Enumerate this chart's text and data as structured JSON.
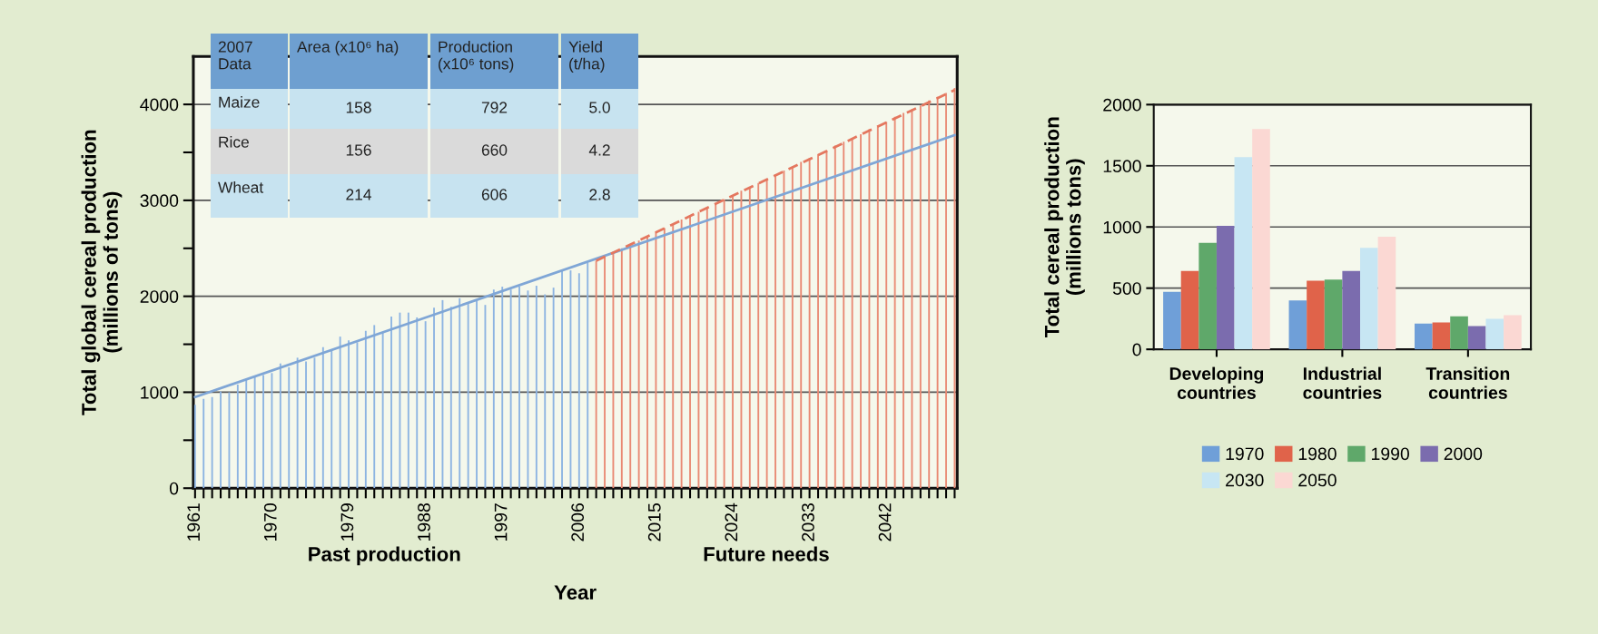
{
  "chart_data": [
    {
      "type": "bar",
      "stacked": true,
      "xlabel": "Year",
      "ylabel": "Total global cereal production\n(millions of tons)",
      "x": [
        1961,
        1962,
        1963,
        1964,
        1965,
        1966,
        1967,
        1968,
        1969,
        1970,
        1971,
        1972,
        1973,
        1974,
        1975,
        1976,
        1977,
        1978,
        1979,
        1980,
        1981,
        1982,
        1983,
        1984,
        1985,
        1986,
        1987,
        1988,
        1989,
        1990,
        1991,
        1992,
        1993,
        1994,
        1995,
        1996,
        1997,
        1998,
        1999,
        2000,
        2001,
        2002,
        2003,
        2004,
        2005,
        2006,
        2007,
        2008,
        2009,
        2010,
        2011,
        2012,
        2013,
        2014,
        2015,
        2016,
        2017,
        2018,
        2019,
        2020,
        2021,
        2022,
        2023,
        2024,
        2025,
        2026,
        2027,
        2028,
        2029,
        2030,
        2031,
        2032,
        2033,
        2034,
        2035,
        2036,
        2037,
        2038,
        2039,
        2040,
        2041,
        2042,
        2043,
        2044,
        2045,
        2046,
        2047,
        2048,
        2049,
        2050
      ],
      "series": [
        {
          "color": "#8db4e2",
          "values": [
            870,
            930,
            950,
            1010,
            1000,
            1080,
            1140,
            1170,
            1180,
            1200,
            1300,
            1260,
            1360,
            1320,
            1360,
            1470,
            1440,
            1580,
            1540,
            1520,
            1640,
            1700,
            1620,
            1790,
            1830,
            1830,
            1780,
            1740,
            1880,
            1960,
            1890,
            1980,
            1920,
            1950,
            1910,
            2070,
            2100,
            2070,
            2100,
            2060,
            2110,
            2020,
            2090,
            2280,
            2270,
            2240,
            2350,
            null,
            null,
            null,
            null,
            null,
            null,
            null,
            null,
            null,
            null,
            null,
            null,
            null,
            null,
            null,
            null,
            null,
            null,
            null,
            null,
            null,
            null,
            null,
            null,
            null,
            null,
            null,
            null,
            null,
            null,
            null,
            null,
            null,
            null,
            null,
            null,
            null,
            null,
            null,
            null,
            null,
            null,
            null
          ]
        },
        {
          "color": "#e98a74",
          "values": [
            null,
            null,
            null,
            null,
            null,
            null,
            null,
            null,
            null,
            null,
            null,
            null,
            null,
            null,
            null,
            null,
            null,
            null,
            null,
            null,
            null,
            null,
            null,
            null,
            null,
            null,
            null,
            null,
            null,
            null,
            null,
            null,
            null,
            null,
            null,
            null,
            null,
            null,
            null,
            null,
            null,
            null,
            null,
            null,
            null,
            null,
            null,
            2370,
            2410,
            2460,
            2500,
            2540,
            2580,
            2630,
            2670,
            2710,
            2750,
            2800,
            2840,
            2880,
            2930,
            2970,
            3010,
            3050,
            3100,
            3140,
            3180,
            3220,
            3270,
            3310,
            3350,
            3400,
            3440,
            3480,
            3520,
            3570,
            3610,
            3650,
            3690,
            3740,
            3780,
            3820,
            3870,
            3910,
            3950,
            3990,
            4040,
            4080,
            4120,
            4170
          ]
        },
        {
          "type": "line",
          "color": "#7fa6d6",
          "x": [
            1961,
            2050
          ],
          "values": [
            950,
            3680
          ]
        },
        {
          "type": "line",
          "color": "#e4775f",
          "line_style": "dashed",
          "x": [
            2008,
            2050
          ],
          "values": [
            2370,
            4150
          ]
        }
      ],
      "xlim": [
        1960.8,
        2050.3
      ],
      "ylim": [
        0,
        4500
      ],
      "yticks": [
        0,
        1000,
        2000,
        3000,
        4000
      ],
      "xticks": [
        1961,
        {
          "value": 1962,
          "label": null
        },
        {
          "value": 1963,
          "label": null
        },
        {
          "value": 1964,
          "label": null
        },
        {
          "value": 1965,
          "label": null
        },
        {
          "value": 1966,
          "label": null
        },
        {
          "value": 1967,
          "label": null
        },
        {
          "value": 1968,
          "label": null
        },
        {
          "value": 1969,
          "label": null
        },
        1970,
        {
          "value": 1971,
          "label": null
        },
        {
          "value": 1972,
          "label": null
        },
        {
          "value": 1973,
          "label": null
        },
        {
          "value": 1974,
          "label": null
        },
        {
          "value": 1975,
          "label": null
        },
        {
          "value": 1976,
          "label": null
        },
        {
          "value": 1977,
          "label": null
        },
        {
          "value": 1978,
          "label": null
        },
        1979,
        {
          "value": 1980,
          "label": null
        },
        {
          "value": 1981,
          "label": null
        },
        {
          "value": 1982,
          "label": null
        },
        {
          "value": 1983,
          "label": null
        },
        {
          "value": 1984,
          "label": null
        },
        {
          "value": 1985,
          "label": null
        },
        {
          "value": 1986,
          "label": null
        },
        {
          "value": 1987,
          "label": null
        },
        1988,
        {
          "value": 1989,
          "label": null
        },
        {
          "value": 1990,
          "label": null
        },
        {
          "value": 1991,
          "label": null
        },
        {
          "value": 1992,
          "label": null
        },
        {
          "value": 1993,
          "label": null
        },
        {
          "value": 1994,
          "label": null
        },
        {
          "value": 1995,
          "label": null
        },
        {
          "value": 1996,
          "label": null
        },
        1997,
        {
          "value": 1998,
          "label": null
        },
        {
          "value": 1999,
          "label": null
        },
        {
          "value": 2000,
          "label": null
        },
        {
          "value": 2001,
          "label": null
        },
        {
          "value": 2002,
          "label": null
        },
        {
          "value": 2003,
          "label": null
        },
        {
          "value": 2004,
          "label": null
        },
        {
          "value": 2005,
          "label": null
        },
        2006,
        {
          "value": 2007,
          "label": null
        },
        {
          "value": 2008,
          "label": null
        },
        {
          "value": 2009,
          "label": null
        },
        {
          "value": 2010,
          "label": null
        },
        {
          "value": 2011,
          "label": null
        },
        {
          "value": 2012,
          "label": null
        },
        {
          "value": 2013,
          "label": null
        },
        {
          "value": 2014,
          "label": null
        },
        2015,
        {
          "value": 2016,
          "label": null
        },
        {
          "value": 2017,
          "label": null
        },
        {
          "value": 2018,
          "label": null
        },
        {
          "value": 2019,
          "label": null
        },
        {
          "value": 2020,
          "label": null
        },
        {
          "value": 2021,
          "label": null
        },
        {
          "value": 2022,
          "label": null
        },
        {
          "value": 2023,
          "label": null
        },
        2024,
        {
          "value": 2025,
          "label": null
        },
        {
          "value": 2026,
          "label": null
        },
        {
          "value": 2027,
          "label": null
        },
        {
          "value": 2028,
          "label": null
        },
        {
          "value": 2029,
          "label": null
        },
        {
          "value": 2030,
          "label": null
        },
        {
          "value": 2031,
          "label": null
        },
        {
          "value": 2032,
          "label": null
        },
        2033,
        {
          "value": 2034,
          "label": null
        },
        {
          "value": 2035,
          "label": null
        },
        {
          "value": 2036,
          "label": null
        },
        {
          "value": 2037,
          "label": null
        },
        {
          "value": 2038,
          "label": null
        },
        {
          "value": 2039,
          "label": null
        },
        {
          "value": 2040,
          "label": null
        },
        {
          "value": 2041,
          "label": null
        },
        2042,
        {
          "value": 2043,
          "label": null
        },
        {
          "value": 2044,
          "label": null
        },
        {
          "value": 2045,
          "label": null
        },
        {
          "value": 2046,
          "label": null
        },
        {
          "value": 2047,
          "label": null
        },
        {
          "value": 2048,
          "label": null
        },
        {
          "value": 2049,
          "label": null
        },
        {
          "value": 2050,
          "label": null
        }
      ],
      "grid": "y",
      "annotations": [
        "2007\nData",
        "Area (x10⁶ ha)",
        "Production\n(x10⁶ tons)",
        "Yield\n(t/ha)",
        "Maize",
        "158",
        "792",
        "5.0",
        "Rice",
        "156",
        "660",
        "4.2",
        "Wheat",
        "214",
        "606",
        "2.8",
        "Past production",
        "Future needs"
      ]
    },
    {
      "type": "bar",
      "ylabel": "Total cereal production\n(millions tons)",
      "categories": [
        "Developing\ncountries",
        "Industrial\ncountries",
        "Transition\ncountries"
      ],
      "series": [
        {
          "name": "1970",
          "color": "#6f9fd8",
          "values": [
            470,
            400,
            210
          ]
        },
        {
          "name": "1980",
          "color": "#e0634a",
          "values": [
            640,
            560,
            220
          ]
        },
        {
          "name": "1990",
          "color": "#5fa86a",
          "values": [
            870,
            570,
            270
          ]
        },
        {
          "name": "2000",
          "color": "#7b6cae",
          "values": [
            1010,
            640,
            190
          ]
        },
        {
          "name": "2030",
          "color": "#c7e6f3",
          "values": [
            1570,
            830,
            250
          ]
        },
        {
          "name": "2050",
          "color": "#fbd8d3",
          "values": [
            1800,
            920,
            280
          ]
        }
      ],
      "ylim": [
        0,
        2000
      ],
      "yticks": [
        0,
        500,
        1000,
        1500,
        2000
      ],
      "grid": "y",
      "legend": "bottom"
    }
  ]
}
